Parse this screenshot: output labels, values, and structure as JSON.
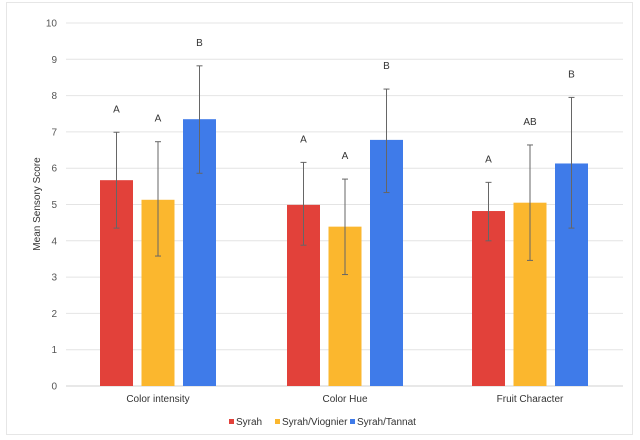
{
  "chart_data": {
    "type": "bar",
    "title": "",
    "xlabel": "",
    "ylabel": "Mean Sensory Score",
    "ylim": [
      0,
      10
    ],
    "yticks": [
      "0",
      "1",
      "2",
      "3",
      "4",
      "5",
      "6",
      "7",
      "8",
      "9",
      "10"
    ],
    "grid": true,
    "legend_position": "bottom",
    "categories": [
      "Color intensity",
      "Color Hue",
      "Fruit Character"
    ],
    "series": [
      {
        "name": "Syrah",
        "color": "#e2413a",
        "values": [
          5.67,
          4.99,
          4.82
        ],
        "error_low": [
          4.35,
          3.88,
          4.0
        ],
        "error_high": [
          6.99,
          6.16,
          5.61
        ],
        "labels": [
          "A",
          "A",
          "A"
        ]
      },
      {
        "name": "Syrah/Viognier",
        "color": "#fbb72e",
        "values": [
          5.13,
          4.39,
          5.05
        ],
        "error_low": [
          3.58,
          3.07,
          3.46
        ],
        "error_high": [
          6.73,
          5.7,
          6.64
        ],
        "labels": [
          "A",
          "A",
          "AB"
        ]
      },
      {
        "name": "Syrah/Tannat",
        "color": "#3f7be9",
        "values": [
          7.35,
          6.78,
          6.13
        ],
        "error_low": [
          5.86,
          5.33,
          4.35
        ],
        "error_high": [
          8.82,
          8.18,
          7.95
        ],
        "labels": [
          "B",
          "B",
          "B"
        ]
      }
    ]
  }
}
